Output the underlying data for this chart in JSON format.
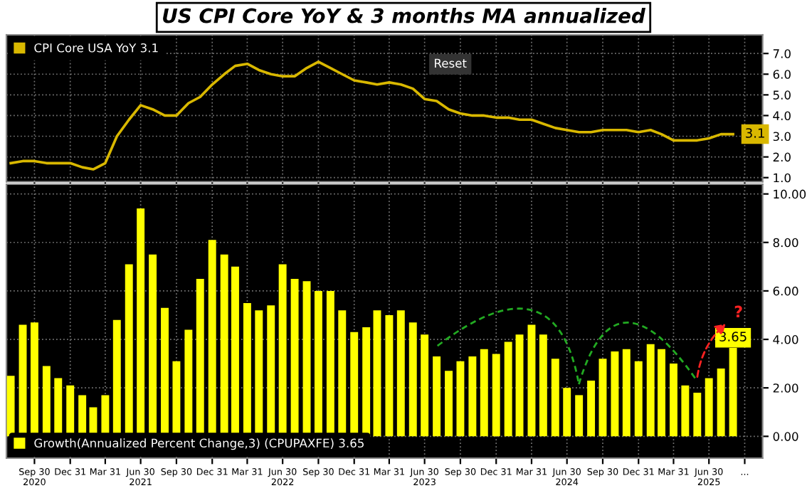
{
  "chart_data": [
    {
      "type": "line",
      "title": "US CPI Core YoY & 3 months MA annualized",
      "x": [
        "2020-07-31",
        "2020-08-31",
        "2020-09-30",
        "2020-10-31",
        "2020-11-30",
        "2020-12-31",
        "2021-01-31",
        "2021-02-28",
        "2021-03-31",
        "2021-04-30",
        "2021-05-31",
        "2021-06-30",
        "2021-07-31",
        "2021-08-31",
        "2021-09-30",
        "2021-10-31",
        "2021-11-30",
        "2021-12-31",
        "2022-01-31",
        "2022-02-28",
        "2022-03-31",
        "2022-04-30",
        "2022-05-31",
        "2022-06-30",
        "2022-07-31",
        "2022-08-31",
        "2022-09-30",
        "2022-10-31",
        "2022-11-30",
        "2022-12-31",
        "2023-01-31",
        "2023-02-28",
        "2023-03-31",
        "2023-04-30",
        "2023-05-31",
        "2023-06-30",
        "2023-07-31",
        "2023-08-31",
        "2023-09-30",
        "2023-10-31",
        "2023-11-30",
        "2023-12-31",
        "2024-01-31",
        "2024-02-29",
        "2024-03-31",
        "2024-04-30",
        "2024-05-31",
        "2024-06-30",
        "2024-07-31",
        "2024-08-31",
        "2024-09-30",
        "2024-10-31",
        "2024-11-30",
        "2024-12-31",
        "2025-01-31",
        "2025-02-28",
        "2025-03-31",
        "2025-04-30",
        "2025-05-31",
        "2025-06-30",
        "2025-07-31",
        "2025-08-31"
      ],
      "series": [
        {
          "name": "CPI Core USA YoY 3.1",
          "color": "#d9b800",
          "values": [
            1.7,
            1.8,
            1.8,
            1.7,
            1.7,
            1.7,
            1.5,
            1.4,
            1.7,
            3.0,
            3.8,
            4.5,
            4.3,
            4.0,
            4.0,
            4.6,
            4.9,
            5.5,
            6.0,
            6.4,
            6.5,
            6.2,
            6.0,
            5.9,
            5.9,
            6.3,
            6.6,
            6.3,
            6.0,
            5.7,
            5.6,
            5.5,
            5.6,
            5.5,
            5.3,
            4.8,
            4.7,
            4.3,
            4.1,
            4.0,
            4.0,
            3.9,
            3.9,
            3.8,
            3.8,
            3.6,
            3.4,
            3.3,
            3.2,
            3.2,
            3.3,
            3.3,
            3.3,
            3.2,
            3.3,
            3.1,
            2.8,
            2.8,
            2.8,
            2.9,
            3.1,
            3.1
          ],
          "value_labels": [
            null,
            null,
            null,
            null,
            null,
            null,
            null,
            null,
            null,
            null,
            null,
            null,
            null,
            null,
            null,
            null,
            null,
            null,
            null,
            null,
            null,
            null,
            null,
            null,
            null,
            null,
            null,
            null,
            null,
            null,
            null,
            null,
            null,
            null,
            null,
            null,
            null,
            null,
            null,
            null,
            null,
            null,
            null,
            null,
            null,
            null,
            null,
            null,
            null,
            null,
            null,
            null,
            null,
            null,
            null,
            null,
            null,
            null,
            null,
            null,
            null,
            "3.1"
          ]
        }
      ],
      "xlim": [
        "2020-07-20",
        "2025-11-15"
      ],
      "ylim": [
        0.8,
        7.9
      ],
      "yticks": [
        {
          "value": 1,
          "label": "1.0"
        },
        {
          "value": 2,
          "label": "2.0"
        },
        {
          "value": 3,
          "label": "3.0"
        },
        {
          "value": 4,
          "label": "4.0"
        },
        {
          "value": 5,
          "label": "5.0"
        },
        {
          "value": 6,
          "label": "6.0"
        },
        {
          "value": 7,
          "label": "7.0"
        }
      ],
      "xticks": [
        {
          "value": "2020-09-30",
          "label": null
        },
        {
          "value": "2020-12-31",
          "label": null
        },
        {
          "value": "2021-03-31",
          "label": null
        },
        {
          "value": "2021-06-30",
          "label": null
        },
        {
          "value": "2021-09-30",
          "label": null
        },
        {
          "value": "2021-12-31",
          "label": null
        },
        {
          "value": "2022-03-31",
          "label": null
        },
        {
          "value": "2022-06-30",
          "label": null
        },
        {
          "value": "2022-09-30",
          "label": null
        },
        {
          "value": "2022-12-31",
          "label": null
        },
        {
          "value": "2023-03-31",
          "label": null
        },
        {
          "value": "2023-06-30",
          "label": null
        },
        {
          "value": "2023-09-30",
          "label": null
        },
        {
          "value": "2023-12-31",
          "label": null
        },
        {
          "value": "2024-03-31",
          "label": null
        },
        {
          "value": "2024-06-30",
          "label": null
        },
        {
          "value": "2024-09-30",
          "label": null
        },
        {
          "value": "2024-12-31",
          "label": null
        },
        {
          "value": "2025-03-31",
          "label": null
        },
        {
          "value": "2025-06-30",
          "label": null
        },
        {
          "value": "2025-09-30",
          "label": null
        }
      ],
      "tick_labels": "y",
      "grid": true,
      "legend": "top left",
      "annotations": [
        "Reset"
      ]
    },
    {
      "type": "bar",
      "x": [
        "2020-07-31",
        "2020-08-31",
        "2020-09-30",
        "2020-10-31",
        "2020-11-30",
        "2020-12-31",
        "2021-01-31",
        "2021-02-28",
        "2021-03-31",
        "2021-04-30",
        "2021-05-31",
        "2021-06-30",
        "2021-07-31",
        "2021-08-31",
        "2021-09-30",
        "2021-10-31",
        "2021-11-30",
        "2021-12-31",
        "2022-01-31",
        "2022-02-28",
        "2022-03-31",
        "2022-04-30",
        "2022-05-31",
        "2022-06-30",
        "2022-07-31",
        "2022-08-31",
        "2022-09-30",
        "2022-10-31",
        "2022-11-30",
        "2022-12-31",
        "2023-01-31",
        "2023-02-28",
        "2023-03-31",
        "2023-04-30",
        "2023-05-31",
        "2023-06-30",
        "2023-07-31",
        "2023-08-31",
        "2023-09-30",
        "2023-10-31",
        "2023-11-30",
        "2023-12-31",
        "2024-01-31",
        "2024-02-29",
        "2024-03-31",
        "2024-04-30",
        "2024-05-31",
        "2024-06-30",
        "2024-07-31",
        "2024-08-31",
        "2024-09-30",
        "2024-10-31",
        "2024-11-30",
        "2024-12-31",
        "2025-01-31",
        "2025-02-28",
        "2025-03-31",
        "2025-04-30",
        "2025-05-31",
        "2025-06-30",
        "2025-07-31",
        "2025-08-31"
      ],
      "series": [
        {
          "name": "Growth(Annualized Percent Change,3) (CPUPAXFE) 3.65",
          "color": "#ffff00",
          "values": [
            2.5,
            4.6,
            4.7,
            2.9,
            2.4,
            2.1,
            1.7,
            1.2,
            1.7,
            4.8,
            7.1,
            9.4,
            7.5,
            5.3,
            3.1,
            4.4,
            6.5,
            8.1,
            7.5,
            7.0,
            5.5,
            5.2,
            5.4,
            7.1,
            6.5,
            6.4,
            6.0,
            6.0,
            5.2,
            4.3,
            4.5,
            5.2,
            5.0,
            5.2,
            4.7,
            4.2,
            3.3,
            2.7,
            3.1,
            3.3,
            3.6,
            3.4,
            3.9,
            4.2,
            4.6,
            4.2,
            3.2,
            2.0,
            1.7,
            2.3,
            3.2,
            3.5,
            3.6,
            3.1,
            3.8,
            3.6,
            3.0,
            2.1,
            1.8,
            2.4,
            2.8,
            3.65
          ],
          "value_labels": [
            null,
            null,
            null,
            null,
            null,
            null,
            null,
            null,
            null,
            null,
            null,
            null,
            null,
            null,
            null,
            null,
            null,
            null,
            null,
            null,
            null,
            null,
            null,
            null,
            null,
            null,
            null,
            null,
            null,
            null,
            null,
            null,
            null,
            null,
            null,
            null,
            null,
            null,
            null,
            null,
            null,
            null,
            null,
            null,
            null,
            null,
            null,
            null,
            null,
            null,
            null,
            null,
            null,
            null,
            null,
            null,
            null,
            null,
            null,
            null,
            null,
            "3.65"
          ]
        }
      ],
      "xlim": [
        "2020-07-20",
        "2025-11-15"
      ],
      "ylim": [
        -0.9,
        10.4
      ],
      "yticks": [
        {
          "value": 0,
          "label": "0.00"
        },
        {
          "value": 2,
          "label": "2.00"
        },
        {
          "value": 4,
          "label": "4.00"
        },
        {
          "value": 6,
          "label": "6.00"
        },
        {
          "value": 8,
          "label": "8.00"
        },
        {
          "value": 10,
          "label": "10.00"
        }
      ],
      "xticks": [
        {
          "value": "2020-09-30",
          "label": "Sep 30\n2020"
        },
        {
          "value": "2020-12-31",
          "label": "Dec 31"
        },
        {
          "value": "2021-03-31",
          "label": "Mar 31"
        },
        {
          "value": "2021-06-30",
          "label": "Jun 30\n2021"
        },
        {
          "value": "2021-09-30",
          "label": "Sep 30"
        },
        {
          "value": "2021-12-31",
          "label": "Dec 31"
        },
        {
          "value": "2022-03-31",
          "label": "Mar 31"
        },
        {
          "value": "2022-06-30",
          "label": "Jun 30\n2022"
        },
        {
          "value": "2022-09-30",
          "label": "Sep 30"
        },
        {
          "value": "2022-12-31",
          "label": "Dec 31"
        },
        {
          "value": "2023-03-31",
          "label": "Mar 31"
        },
        {
          "value": "2023-06-30",
          "label": "Jun 30\n2023"
        },
        {
          "value": "2023-09-30",
          "label": "Sep 30"
        },
        {
          "value": "2023-12-31",
          "label": "Dec 31"
        },
        {
          "value": "2024-03-31",
          "label": "Mar 31"
        },
        {
          "value": "2024-06-30",
          "label": "Jun 30\n2024"
        },
        {
          "value": "2024-09-30",
          "label": "Sep 30"
        },
        {
          "value": "2024-12-31",
          "label": "Dec 31"
        },
        {
          "value": "2025-03-31",
          "label": "Mar 31"
        },
        {
          "value": "2025-06-30",
          "label": "Jun 30\n2025"
        },
        {
          "value": "2025-09-30",
          "label": "..."
        }
      ],
      "grid": true,
      "legend": "bottom left",
      "annotations": [
        "?"
      ]
    }
  ]
}
